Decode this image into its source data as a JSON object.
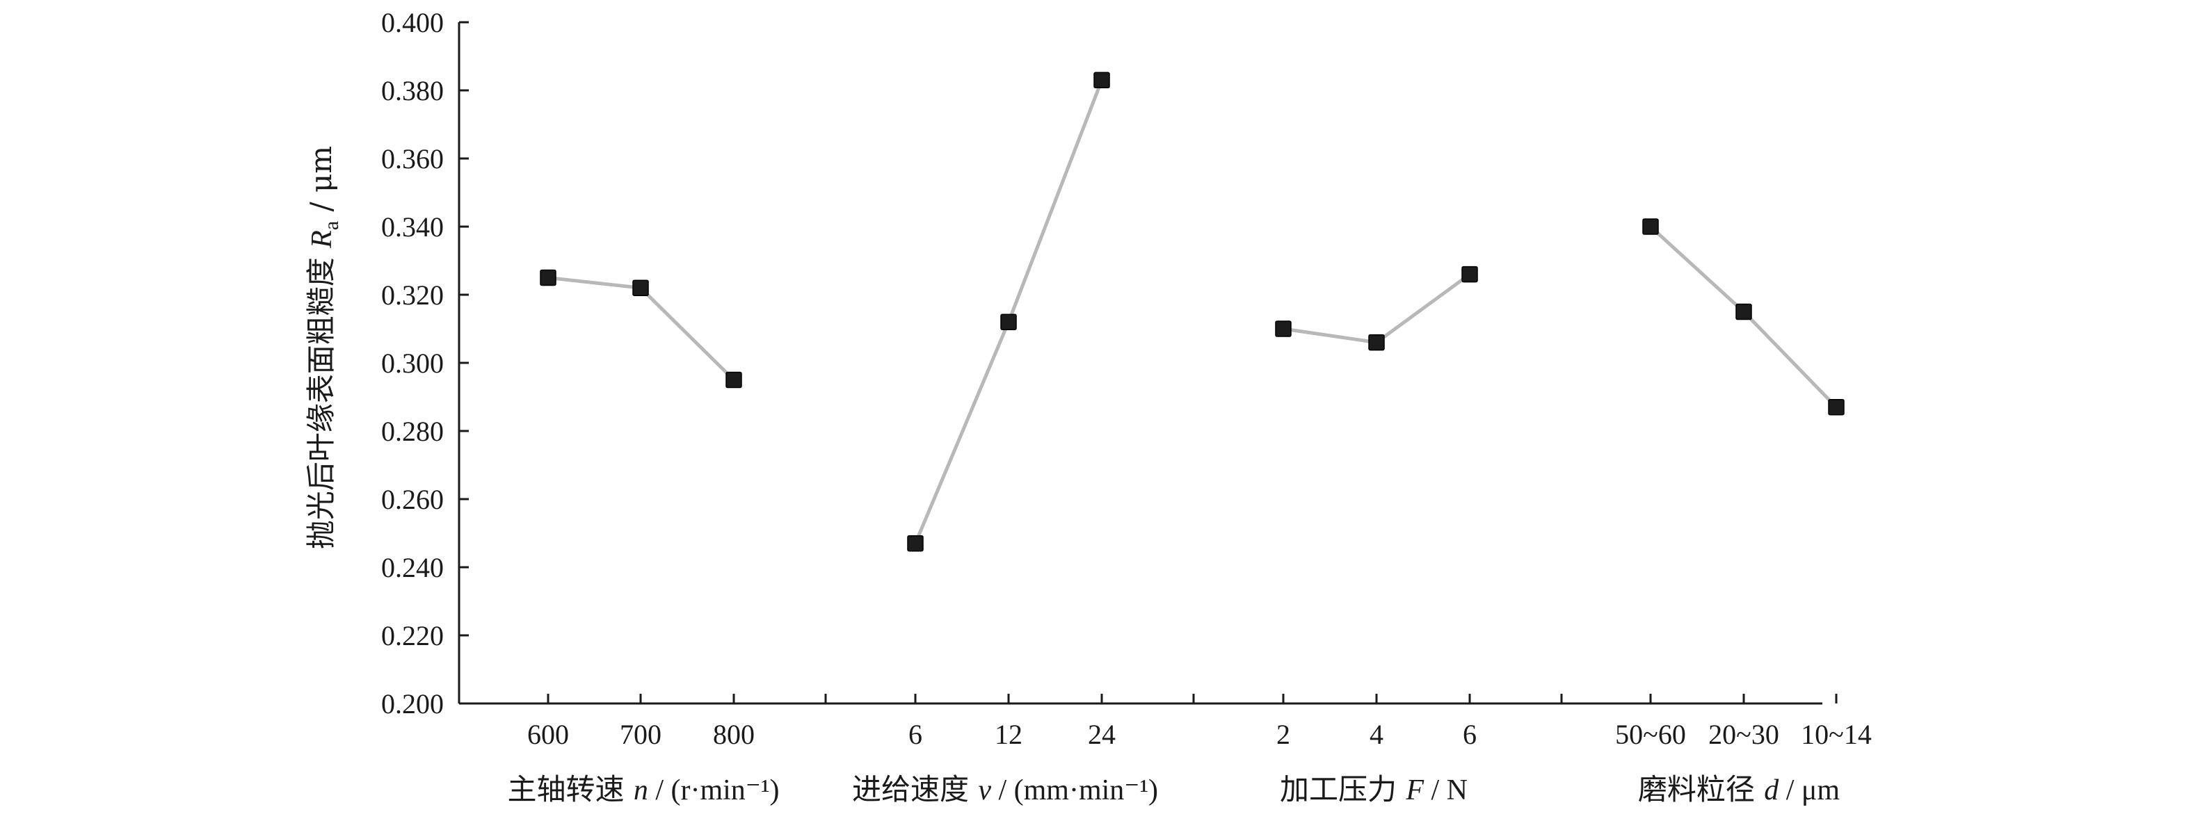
{
  "chart_data": {
    "type": "line",
    "ylabel": "抛光后叶缘表面粗糙度 Ra / μm",
    "ylabel_parts": {
      "prefix": "抛光后叶缘表面粗糙度 ",
      "symbol": "R",
      "subscript": "a",
      "suffix": " / μm"
    },
    "ylim": [
      0.2,
      0.4
    ],
    "yticks": [
      "0.200",
      "0.220",
      "0.240",
      "0.260",
      "0.280",
      "0.300",
      "0.320",
      "0.340",
      "0.360",
      "0.380",
      "0.400"
    ],
    "grid": false,
    "groups": [
      {
        "label": "主轴转速 n / (r·min⁻¹)",
        "label_parts": {
          "prefix": "主轴转速 ",
          "symbol": "n",
          "suffix": " / (r·min⁻¹)"
        },
        "categories": [
          "600",
          "700",
          "800"
        ],
        "values": [
          0.325,
          0.322,
          0.295
        ]
      },
      {
        "label": "进给速度 v / (mm·min⁻¹)",
        "label_parts": {
          "prefix": "进给速度 ",
          "symbol": "v",
          "suffix": " / (mm·min⁻¹)"
        },
        "categories": [
          "6",
          "12",
          "24"
        ],
        "values": [
          0.247,
          0.312,
          0.383
        ]
      },
      {
        "label": "加工压力 F / N",
        "label_parts": {
          "prefix": "加工压力 ",
          "symbol": "F",
          "suffix": " / N"
        },
        "categories": [
          "2",
          "4",
          "6"
        ],
        "values": [
          0.31,
          0.306,
          0.326
        ]
      },
      {
        "label": "磨料粒径 d / μm",
        "label_parts": {
          "prefix": "磨料粒径 ",
          "symbol": "d",
          "suffix": " / μm"
        },
        "categories": [
          "50~60",
          "20~30",
          "10~14"
        ],
        "values": [
          0.34,
          0.315,
          0.287
        ]
      }
    ],
    "colors": {
      "line": "#b8b8b8",
      "marker": "#1c1c1c",
      "axis": "#1a1a1a"
    }
  }
}
